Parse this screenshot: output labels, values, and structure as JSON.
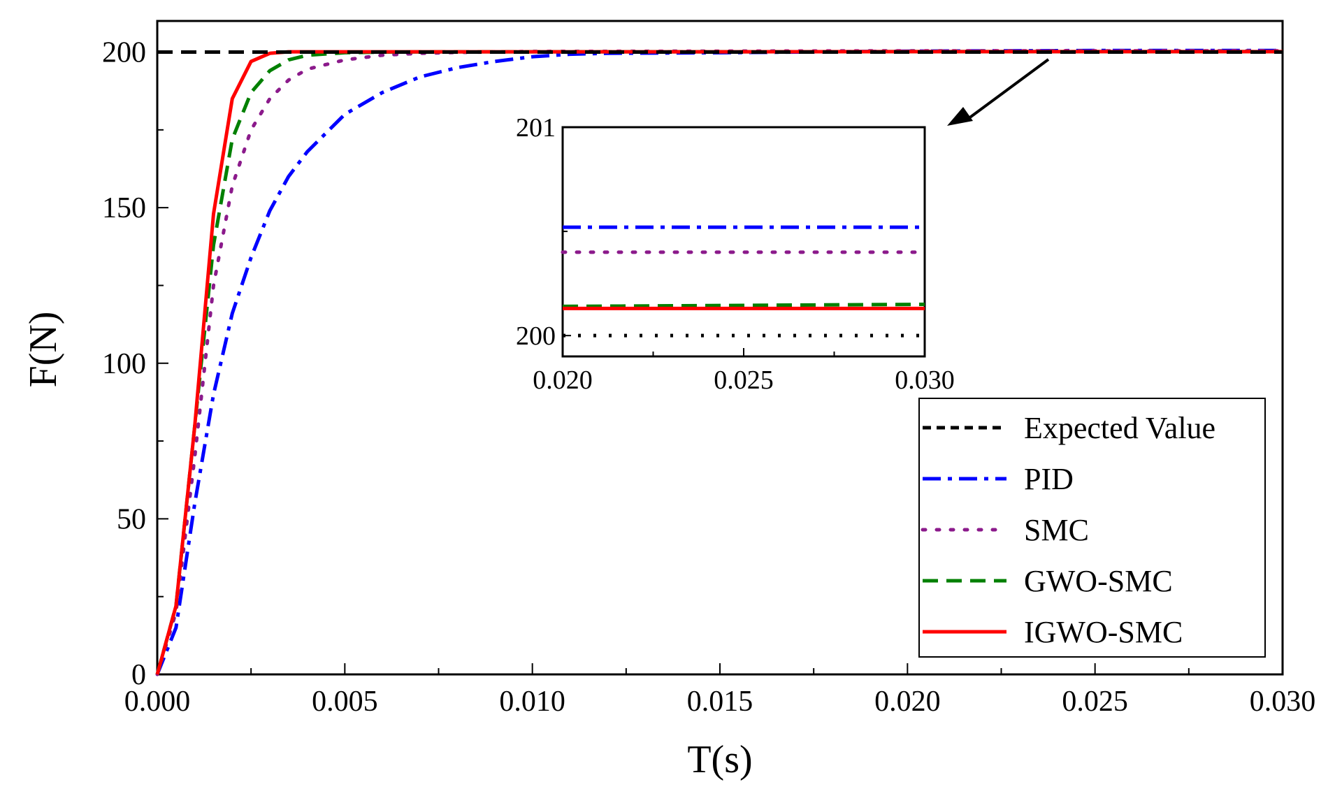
{
  "chart_data": {
    "type": "line",
    "xlabel": "T(s)",
    "ylabel": "F(N)",
    "xlim": [
      0,
      0.03
    ],
    "ylim": [
      0,
      210
    ],
    "xticks": [
      "0.000",
      "0.005",
      "0.010",
      "0.015",
      "0.020",
      "0.025",
      "0.030"
    ],
    "yticks": [
      "0",
      "50",
      "100",
      "150",
      "200"
    ],
    "legend_position": "bottom-right",
    "series": [
      {
        "name": "Expected Value",
        "color": "#000000",
        "style": "dashed",
        "x": [
          0,
          0.03
        ],
        "y": [
          200,
          200
        ]
      },
      {
        "name": "PID",
        "color": "#0000ff",
        "style": "dashdot",
        "x": [
          0,
          0.0005,
          0.001,
          0.0015,
          0.002,
          0.0025,
          0.003,
          0.0035,
          0.004,
          0.005,
          0.006,
          0.007,
          0.008,
          0.009,
          0.01,
          0.011,
          0.012,
          0.015,
          0.02,
          0.025,
          0.03
        ],
        "y": [
          0,
          15,
          55,
          90,
          116,
          134,
          149,
          160,
          168,
          180,
          187,
          192,
          195,
          197,
          198.5,
          199.3,
          199.6,
          199.8,
          200.3,
          200.5,
          200.5
        ]
      },
      {
        "name": "SMC",
        "color": "#8b1a8b",
        "style": "dotted",
        "x": [
          0,
          0.0005,
          0.001,
          0.0015,
          0.002,
          0.0025,
          0.003,
          0.0035,
          0.004,
          0.005,
          0.006,
          0.007,
          0.008,
          0.01,
          0.015,
          0.02,
          0.025,
          0.03
        ],
        "y": [
          0,
          20,
          70,
          125,
          157,
          175,
          185,
          191,
          194.5,
          197.5,
          199,
          199.6,
          199.9,
          200.2,
          200.3,
          200.4,
          200.4,
          200.4
        ]
      },
      {
        "name": "GWO-SMC",
        "color": "#008000",
        "style": "dashed",
        "x": [
          0,
          0.0005,
          0.001,
          0.0015,
          0.002,
          0.0025,
          0.003,
          0.0035,
          0.004,
          0.005,
          0.006,
          0.008,
          0.01,
          0.015,
          0.02,
          0.025,
          0.03
        ],
        "y": [
          0,
          22,
          80,
          138,
          172,
          187,
          194,
          197.5,
          199,
          199.8,
          200,
          200.1,
          200.1,
          200.1,
          200.13,
          200.14,
          200.14
        ]
      },
      {
        "name": "IGWO-SMC",
        "color": "#ff0000",
        "style": "solid",
        "x": [
          0,
          0.0005,
          0.001,
          0.0015,
          0.002,
          0.0025,
          0.003,
          0.0035,
          0.004,
          0.005,
          0.01,
          0.015,
          0.02,
          0.025,
          0.03
        ],
        "y": [
          0,
          22,
          80,
          148,
          185,
          197,
          199.6,
          200.1,
          200.1,
          200.1,
          200.1,
          200.1,
          200.13,
          200.13,
          200.13
        ]
      }
    ],
    "inset": {
      "xlim": [
        0.02,
        0.03
      ],
      "ylim": [
        199.9,
        201
      ],
      "xticks": [
        "0.020",
        "0.025",
        "0.030"
      ],
      "yticks": [
        "200",
        "201"
      ],
      "series": [
        {
          "name": "PID",
          "y": [
            200.52,
            200.52
          ]
        },
        {
          "name": "SMC",
          "y": [
            200.4,
            200.4
          ]
        },
        {
          "name": "GWO-SMC",
          "y": [
            200.14,
            200.15
          ]
        },
        {
          "name": "IGWO-SMC",
          "y": [
            200.13,
            200.13
          ]
        },
        {
          "name": "Expected Value",
          "y": [
            200,
            200
          ]
        }
      ]
    }
  }
}
